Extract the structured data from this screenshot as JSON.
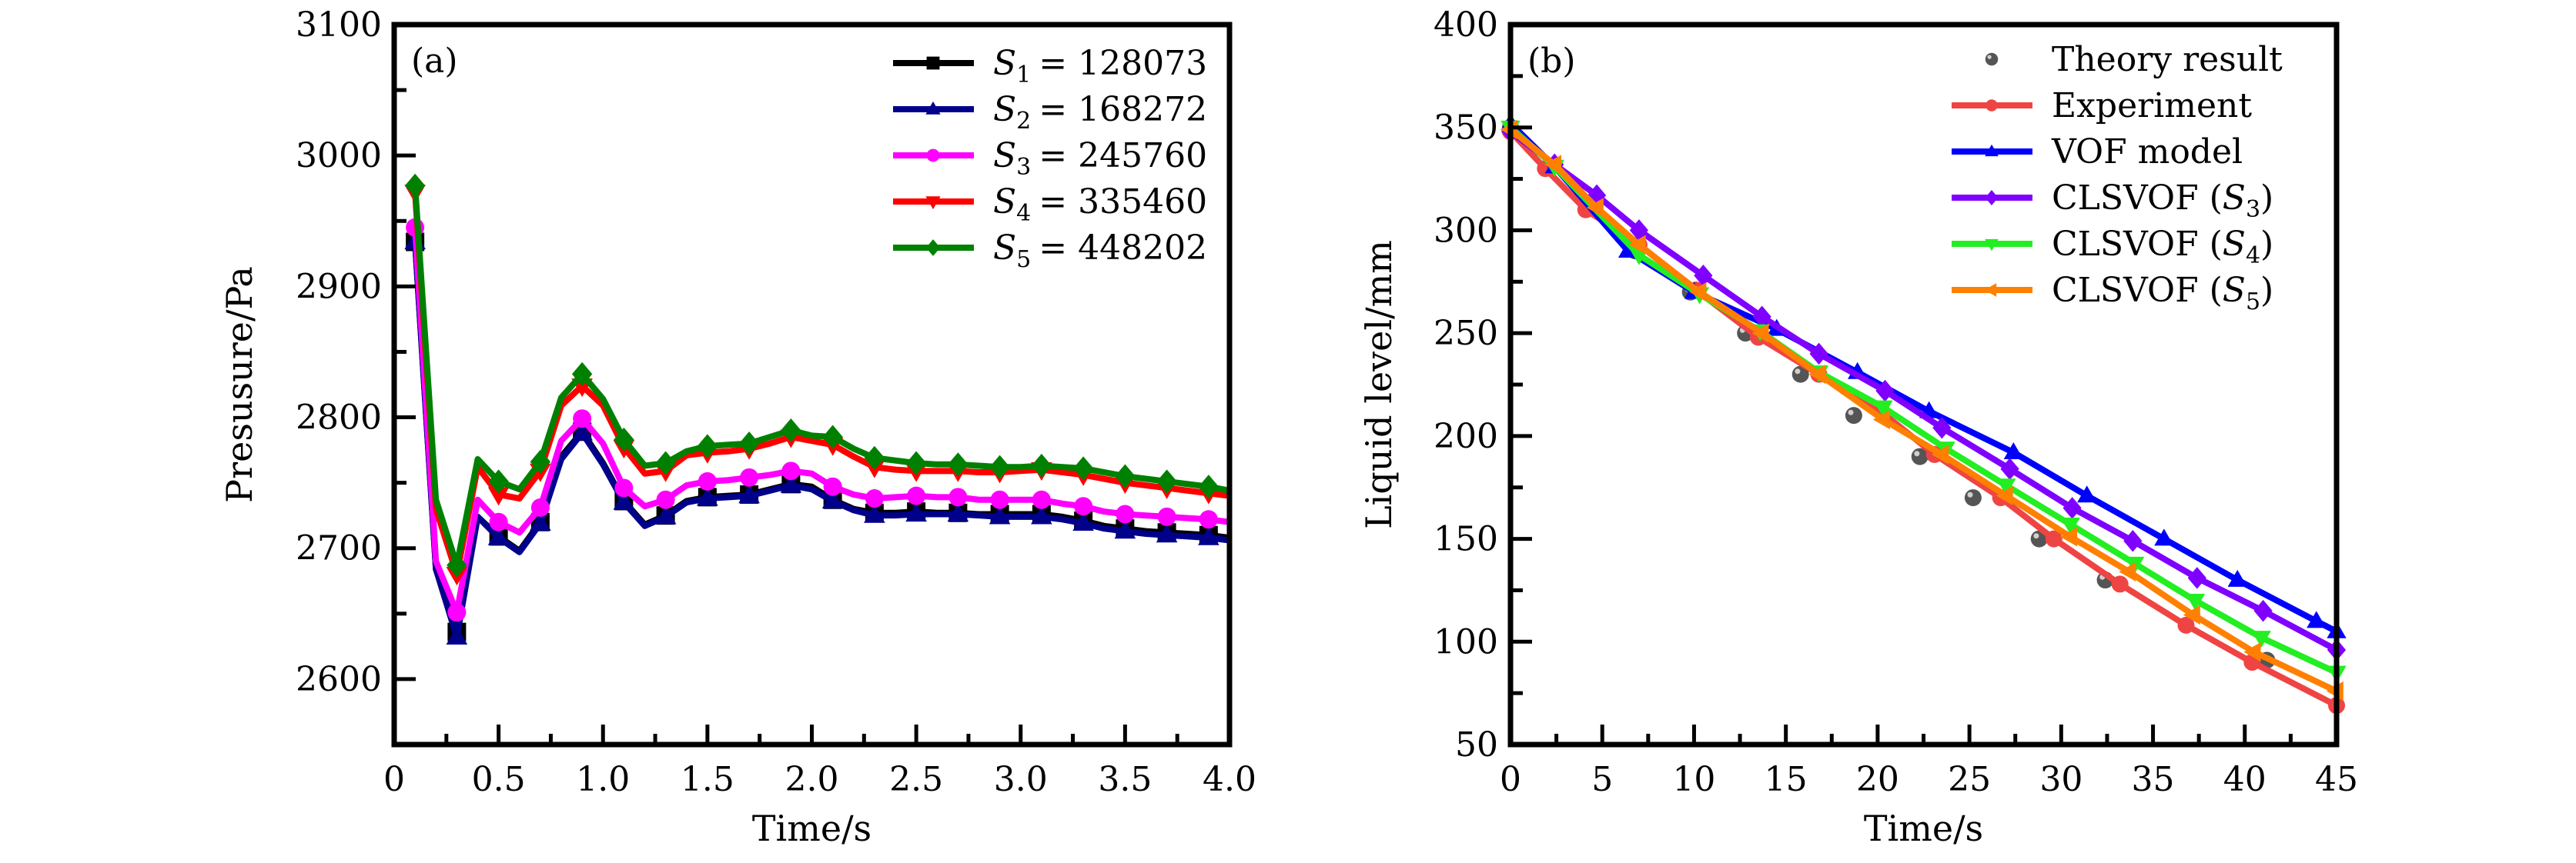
{
  "chart_data": [
    {
      "type": "line",
      "panel_label": "(a)",
      "title": "",
      "xlabel": "Time/s",
      "ylabel": "Presusure/Pa",
      "xlim": [
        0,
        4.0
      ],
      "ylim": [
        2550,
        3100
      ],
      "xticks": [
        0,
        0.5,
        1.0,
        1.5,
        2.0,
        2.5,
        3.0,
        3.5,
        4.0
      ],
      "xtick_labels": [
        "0",
        "0.5",
        "1.0",
        "1.5",
        "2.0",
        "2.5",
        "3.0",
        "3.5",
        "4.0"
      ],
      "xminor": [
        0.25,
        0.75,
        1.25,
        1.75,
        2.25,
        2.75,
        3.25,
        3.75
      ],
      "yticks": [
        2600,
        2700,
        2800,
        2900,
        3000,
        3100
      ],
      "ytick_labels": [
        "2600",
        "2700",
        "2800",
        "2900",
        "3000",
        "3100"
      ],
      "yminor": [
        2650,
        2750,
        2850,
        2950,
        3050
      ],
      "grid": false,
      "legend_position": "top-right",
      "x": [
        0.1,
        0.2,
        0.3,
        0.4,
        0.5,
        0.6,
        0.7,
        0.8,
        0.9,
        1.0,
        1.1,
        1.2,
        1.3,
        1.4,
        1.5,
        1.6,
        1.7,
        1.8,
        1.9,
        2.0,
        2.1,
        2.2,
        2.3,
        2.4,
        2.5,
        2.6,
        2.7,
        2.8,
        2.9,
        3.0,
        3.1,
        3.2,
        3.3,
        3.4,
        3.5,
        3.6,
        3.7,
        3.8,
        3.9,
        4.0
      ],
      "marker_every": 2,
      "series": [
        {
          "name": "S1",
          "sub": "1",
          "value_label": "= 128073",
          "color": "#000000",
          "marker": "square",
          "values": [
            2934,
            2684,
            2636,
            2724,
            2709,
            2698,
            2720,
            2770,
            2789,
            2765,
            2736,
            2718,
            2725,
            2736,
            2739,
            2740,
            2741,
            2745,
            2749,
            2747,
            2737,
            2730,
            2727,
            2727,
            2728,
            2727,
            2727,
            2726,
            2726,
            2726,
            2726,
            2724,
            2721,
            2717,
            2715,
            2713,
            2712,
            2711,
            2710,
            2708
          ]
        },
        {
          "name": "S2",
          "sub": "2",
          "value_label": "= 168272",
          "color": "#00008b",
          "marker": "triangle-up",
          "values": [
            2934,
            2684,
            2632,
            2724,
            2708,
            2697,
            2719,
            2768,
            2788,
            2764,
            2735,
            2717,
            2724,
            2735,
            2738,
            2739,
            2740,
            2744,
            2748,
            2745,
            2736,
            2729,
            2725,
            2725,
            2726,
            2726,
            2726,
            2725,
            2724,
            2724,
            2724,
            2722,
            2719,
            2715,
            2713,
            2711,
            2710,
            2709,
            2708,
            2706
          ]
        },
        {
          "name": "S3",
          "sub": "3",
          "value_label": "= 245760",
          "color": "#ff00ff",
          "marker": "circle",
          "values": [
            2945,
            2690,
            2651,
            2737,
            2720,
            2712,
            2731,
            2782,
            2799,
            2780,
            2746,
            2732,
            2737,
            2748,
            2751,
            2752,
            2754,
            2756,
            2759,
            2757,
            2747,
            2741,
            2738,
            2739,
            2740,
            2739,
            2739,
            2737,
            2737,
            2737,
            2737,
            2734,
            2732,
            2728,
            2726,
            2725,
            2724,
            2723,
            2722,
            2720
          ]
        },
        {
          "name": "S4",
          "sub": "4",
          "value_label": "= 335460",
          "color": "#ff0000",
          "marker": "triangle-down",
          "values": [
            2972,
            2730,
            2680,
            2762,
            2741,
            2738,
            2759,
            2809,
            2824,
            2809,
            2777,
            2757,
            2759,
            2771,
            2773,
            2774,
            2776,
            2780,
            2785,
            2782,
            2779,
            2770,
            2762,
            2760,
            2759,
            2759,
            2759,
            2758,
            2758,
            2759,
            2760,
            2758,
            2756,
            2753,
            2750,
            2748,
            2746,
            2744,
            2742,
            2740
          ]
        },
        {
          "name": "S5",
          "sub": "5",
          "value_label": "= 448202",
          "color": "#008000",
          "marker": "diamond",
          "values": [
            2977,
            2737,
            2687,
            2768,
            2751,
            2745,
            2766,
            2815,
            2833,
            2814,
            2783,
            2763,
            2765,
            2774,
            2778,
            2779,
            2780,
            2785,
            2790,
            2786,
            2785,
            2776,
            2769,
            2767,
            2765,
            2764,
            2764,
            2763,
            2762,
            2762,
            2763,
            2762,
            2761,
            2758,
            2755,
            2753,
            2751,
            2749,
            2747,
            2744
          ]
        }
      ]
    },
    {
      "type": "line",
      "panel_label": "(b)",
      "title": "",
      "xlabel": "Time/s",
      "ylabel": "Liquid level/mm",
      "xlim": [
        0,
        45
      ],
      "ylim": [
        50,
        400
      ],
      "xticks": [
        0,
        5,
        10,
        15,
        20,
        25,
        30,
        35,
        40,
        45
      ],
      "xtick_labels": [
        "0",
        "5",
        "10",
        "15",
        "20",
        "25",
        "30",
        "35",
        "40",
        "45"
      ],
      "xminor": [
        2.5,
        7.5,
        12.5,
        17.5,
        22.5,
        27.5,
        32.5,
        37.5,
        42.5
      ],
      "yticks": [
        50,
        100,
        150,
        200,
        250,
        300,
        350,
        400
      ],
      "ytick_labels": [
        "50",
        "100",
        "150",
        "200",
        "250",
        "300",
        "350",
        "400"
      ],
      "yminor": [
        75,
        125,
        175,
        225,
        275,
        325,
        375
      ],
      "grid": false,
      "legend_position": "top-right",
      "series": [
        {
          "name": "Theory result",
          "color": "#555555",
          "marker": "sphere",
          "line": false,
          "x": [
            0,
            6.8,
            9.8,
            12.8,
            15.8,
            18.7,
            22.3,
            25.2,
            28.8,
            32.4,
            41.2
          ],
          "values": [
            350,
            290,
            270,
            250,
            230,
            210,
            190,
            170,
            150,
            130,
            91
          ]
        },
        {
          "name": "Experiment",
          "color": "#ef4444",
          "marker": "circle",
          "line": true,
          "x": [
            0,
            1.9,
            4.1,
            7.0,
            10.1,
            13.5,
            16.8,
            20.3,
            23.1,
            26.7,
            29.6,
            33.2,
            36.8,
            40.4,
            45
          ],
          "values": [
            348,
            330,
            310,
            293,
            271,
            248,
            230,
            211,
            191,
            170,
            150,
            128,
            108,
            90,
            69
          ]
        },
        {
          "name": "VOF model",
          "color": "#0000ff",
          "marker": "triangle-up",
          "line": true,
          "x": [
            0,
            2.4,
            6.4,
            10.0,
            14.5,
            18.9,
            22.8,
            27.4,
            31.4,
            35.6,
            39.6,
            43.9,
            45
          ],
          "values": [
            352,
            331,
            290,
            270,
            252,
            231,
            212,
            192,
            171,
            150,
            130,
            110,
            105
          ]
        },
        {
          "name": "CLSVOF (S3)",
          "label_main": "CLSVOF (",
          "sub": "3",
          "color": "#8000ff",
          "marker": "diamond",
          "line": true,
          "x": [
            0,
            2.4,
            4.7,
            7.0,
            10.5,
            13.7,
            16.8,
            20.4,
            23.5,
            27.2,
            30.6,
            33.9,
            37.4,
            41.0,
            45
          ],
          "values": [
            348,
            332,
            317,
            300,
            278,
            258,
            240,
            222,
            204,
            184,
            165,
            149,
            131,
            115,
            96
          ]
        },
        {
          "name": "CLSVOF (S4)",
          "label_main": "CLSVOF (",
          "sub": "4",
          "color": "#22ee22",
          "marker": "triangle-down",
          "line": true,
          "x": [
            0,
            2.4,
            7.0,
            10.3,
            13.6,
            16.8,
            20.3,
            23.7,
            27.0,
            30.5,
            34.0,
            37.3,
            40.9,
            45
          ],
          "values": [
            350,
            331,
            288,
            269,
            251,
            231,
            214,
            194,
            176,
            157,
            138,
            120,
            102,
            85
          ]
        },
        {
          "name": "CLSVOF (S5)",
          "label_main": "CLSVOF (",
          "sub": "5",
          "color": "#ff8000",
          "marker": "triangle-left",
          "line": true,
          "x": [
            0,
            2.4,
            4.7,
            7.0,
            10.3,
            13.7,
            16.8,
            20.3,
            23.5,
            27.0,
            30.5,
            33.7,
            37.2,
            40.5,
            45
          ],
          "values": [
            349,
            332,
            311,
            293,
            270,
            250,
            230,
            208,
            191,
            171,
            151,
            134,
            113,
            95,
            76
          ]
        }
      ]
    }
  ]
}
